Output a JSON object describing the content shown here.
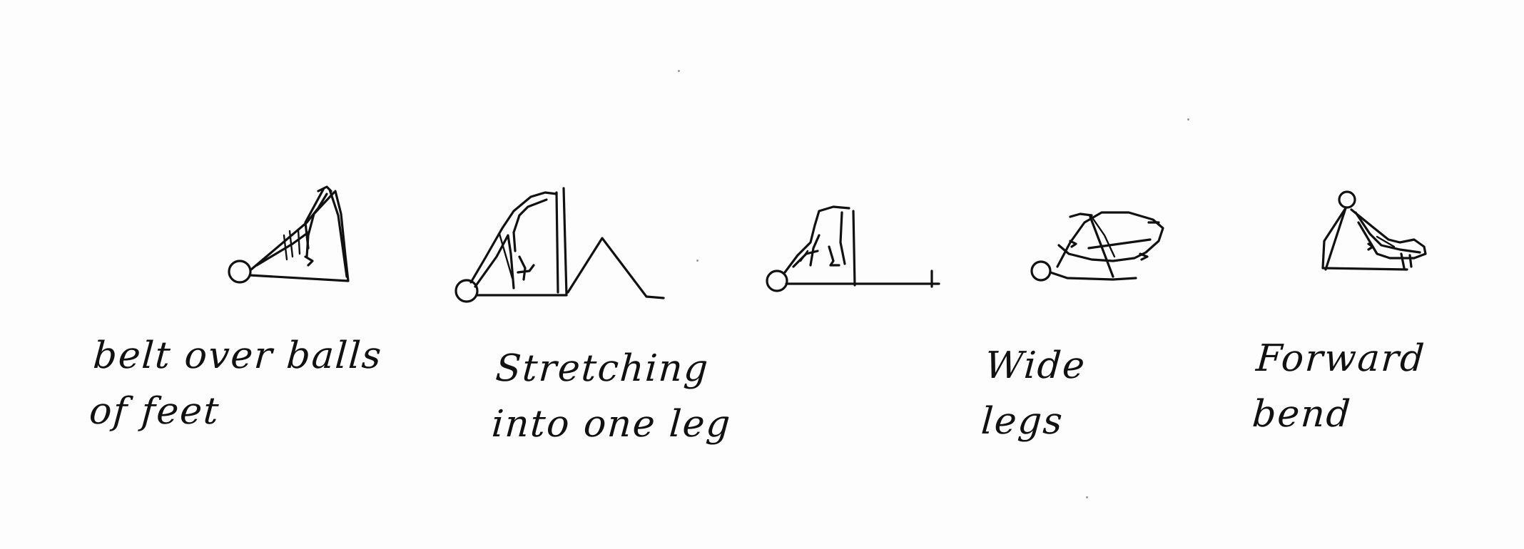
{
  "figures": [
    {
      "icon": "person-belt-over-feet-sketch",
      "caption": "belt over balls\nof feet"
    },
    {
      "icon": "person-stretching-one-leg-sketch",
      "caption": "Stretching\ninto one leg"
    },
    {
      "icon": "person-seated-legs-extended-sketch",
      "caption": ""
    },
    {
      "icon": "person-wide-legs-sketch",
      "caption": "Wide\nlegs"
    },
    {
      "icon": "person-forward-bend-sketch",
      "caption": "Forward\nbend"
    }
  ],
  "colors": {
    "paper": "#fdfdfd",
    "ink": "#111111"
  }
}
